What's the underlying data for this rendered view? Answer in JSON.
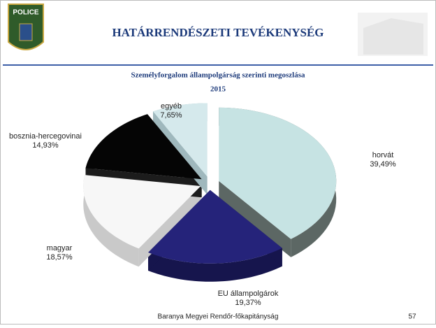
{
  "header": {
    "title": "HATÁRRENDÉSZETI TEVÉKENYSÉG",
    "badge": "POLICE"
  },
  "chart_data": {
    "type": "pie3d",
    "title": "Személyforgalom állampolgárság szerinti megoszlása",
    "subtitle": "2015",
    "categories": [
      "horvát",
      "EU állampolgárok",
      "magyar",
      "bosznia-hercegovinai",
      "egyéb"
    ],
    "values": [
      39.49,
      19.37,
      18.57,
      14.93,
      7.65
    ],
    "value_labels": [
      "39,49%",
      "19,37%",
      "18,57%",
      "14,93%",
      "7,65%"
    ],
    "colors": [
      "#c6e3e3",
      "#25237a",
      "#f7f7f7",
      "#050505",
      "#d5e9ec"
    ],
    "side_colors": [
      "#5c6764",
      "#16154d",
      "#c9c9c9",
      "#1c1c1c",
      "#9fb8bd"
    ]
  },
  "footer": {
    "text": "Baranya Megyei Rendőr-főkapitányság",
    "page": "57"
  }
}
